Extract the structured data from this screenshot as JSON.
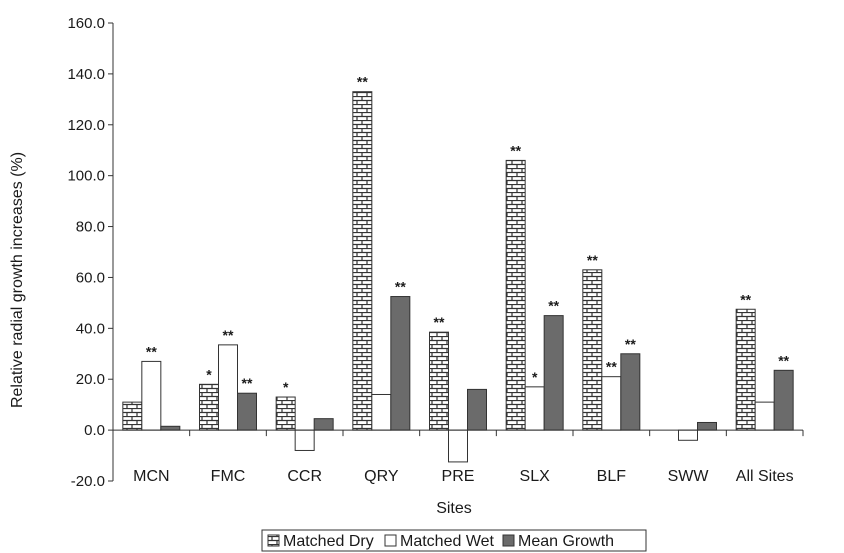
{
  "chart_data": {
    "type": "bar",
    "title": "",
    "xlabel": "Sites",
    "ylabel": "Relative radial growth increases (%)",
    "ylim": [
      -20,
      160
    ],
    "yticks": [
      "-20.0",
      "0.0",
      "20.0",
      "40.0",
      "60.0",
      "80.0",
      "100.0",
      "120.0",
      "140.0",
      "160.0"
    ],
    "grid": false,
    "legend_position": "bottom",
    "categories": [
      "MCN",
      "FMC",
      "CCR",
      "QRY",
      "PRE",
      "SLX",
      "BLF",
      "SWW",
      "All Sites"
    ],
    "series": [
      {
        "name": "Matched Dry",
        "pattern": "brick",
        "values": [
          11,
          18,
          13,
          133,
          38.5,
          106,
          63,
          0,
          47.5
        ],
        "significance": [
          "",
          "*",
          "*",
          "**",
          "**",
          "**",
          "**",
          "",
          "**"
        ]
      },
      {
        "name": "Matched Wet",
        "pattern": "white",
        "values": [
          27,
          33.5,
          -8,
          14,
          -12.5,
          17,
          21,
          -4,
          11
        ],
        "significance": [
          "**",
          "**",
          "",
          "",
          "",
          "*",
          "**",
          "",
          ""
        ]
      },
      {
        "name": "Mean Growth",
        "pattern": "solid",
        "values": [
          1.5,
          14.5,
          4.5,
          52.5,
          16,
          45,
          30,
          3,
          23.5
        ],
        "significance": [
          "",
          "**",
          "",
          "**",
          "",
          "**",
          "**",
          "",
          "**"
        ]
      }
    ],
    "colors": {
      "matched_dry_fill": "#ffffff",
      "matched_dry_line": "#333333",
      "matched_wet_fill": "#ffffff",
      "mean_growth_fill": "#6b6b6b",
      "axis": "#333333"
    }
  }
}
